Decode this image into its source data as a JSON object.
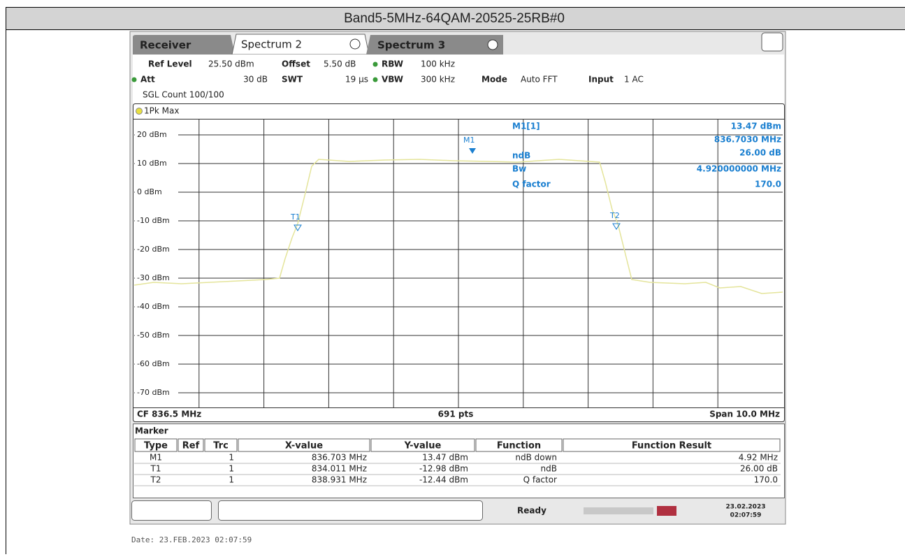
{
  "header": {
    "title": "Band5-5MHz-64QAM-20525-25RB#0"
  },
  "tabs": [
    "Receiver",
    "Spectrum 2",
    "Spectrum 3"
  ],
  "settings": {
    "ref_level_label": "Ref Level",
    "ref_level": "25.50 dBm",
    "offset_label": "Offset",
    "offset": "5.50 dB",
    "rbw_label": "RBW",
    "rbw": "100 kHz",
    "att_label": "Att",
    "att": "30 dB",
    "swt_label": "SWT",
    "swt": "19 µs",
    "vbw_label": "VBW",
    "vbw": "300 kHz",
    "mode_label": "Mode",
    "mode": "Auto FFT",
    "input_label": "Input",
    "input": "1 AC",
    "sgl_count": "SGL Count 100/100"
  },
  "trace_label": "1Pk Max",
  "y_labels": [
    "20 dBm",
    "10 dBm",
    "0 dBm",
    "-10 dBm",
    "-20 dBm",
    "-30 dBm",
    "-40 dBm",
    "-50 dBm",
    "-60 dBm",
    "-70 dBm"
  ],
  "plot_markers": [
    "M1",
    "T1",
    "T2"
  ],
  "marker_info": {
    "m1_label": "M1[1]",
    "m1_y": "13.47 dBm",
    "m1_x": "836.7030 MHz",
    "ndb_label": "ndB",
    "ndb": "26.00 dB",
    "bw_label": "Bw",
    "bw": "4.920000000 MHz",
    "q_label": "Q factor",
    "q": "170.0"
  },
  "footer": {
    "cf": "CF 836.5 MHz",
    "pts": "691 pts",
    "span": "Span 10.0 MHz"
  },
  "marker_table": {
    "title": "Marker",
    "headers": [
      "Type",
      "Ref",
      "Trc",
      "X-value",
      "Y-value",
      "Function",
      "Function Result"
    ],
    "rows": [
      {
        "type": "M1",
        "trc": "1",
        "x": "836.703 MHz",
        "y": "13.47 dBm",
        "function": "ndB down",
        "result": "4.92 MHz"
      },
      {
        "type": "T1",
        "trc": "1",
        "x": "834.011 MHz",
        "y": "-12.98 dBm",
        "function": "ndB",
        "result": "26.00 dB"
      },
      {
        "type": "T2",
        "trc": "1",
        "x": "838.931 MHz",
        "y": "-12.44 dBm",
        "function": "Q factor",
        "result": "170.0"
      }
    ]
  },
  "status": {
    "ready": "Ready",
    "date": "23.02.2023",
    "time": "02:07:59"
  },
  "date_line": "Date: 23.FEB.2023  02:07:59"
}
